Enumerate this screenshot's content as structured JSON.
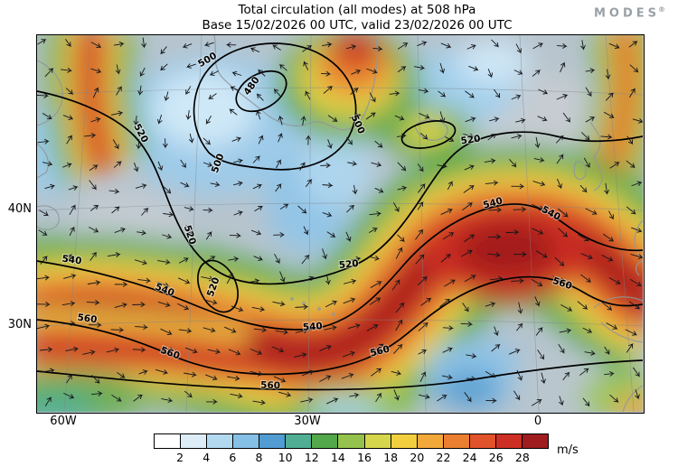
{
  "header": {
    "brand": "MODES",
    "brand_mark": "®"
  },
  "chart_data": {
    "type": "heatmap",
    "title": "Total circulation (all modes) at 508 hPa",
    "subtitle": "Base 15/02/2026 00 UTC, valid 23/02/2026 00 UTC",
    "level_hPa": 508,
    "base_time": "15/02/2026 00 UTC",
    "valid_time": "23/02/2026 00 UTC",
    "variable": "Total circulation wind speed",
    "unit": "m/s",
    "colorbar": {
      "unit": "m/s",
      "ticks": [
        2,
        4,
        6,
        8,
        10,
        12,
        14,
        16,
        18,
        20,
        22,
        24,
        26,
        28
      ],
      "colors": [
        "#ffffff",
        "#dcedf8",
        "#b3d9f1",
        "#85c0e6",
        "#519cd3",
        "#4fae94",
        "#53a849",
        "#94c24d",
        "#d6d64b",
        "#f2cf3e",
        "#f2a93a",
        "#eb7f31",
        "#e1532b",
        "#ce2f24",
        "#9f1c1f"
      ]
    },
    "contour_levels": [
      480,
      500,
      520,
      540,
      560
    ],
    "lat_ticks": [
      "40N",
      "30N"
    ],
    "lon_ticks": [
      "60W",
      "30W",
      "0"
    ],
    "wind_vectors": true
  }
}
